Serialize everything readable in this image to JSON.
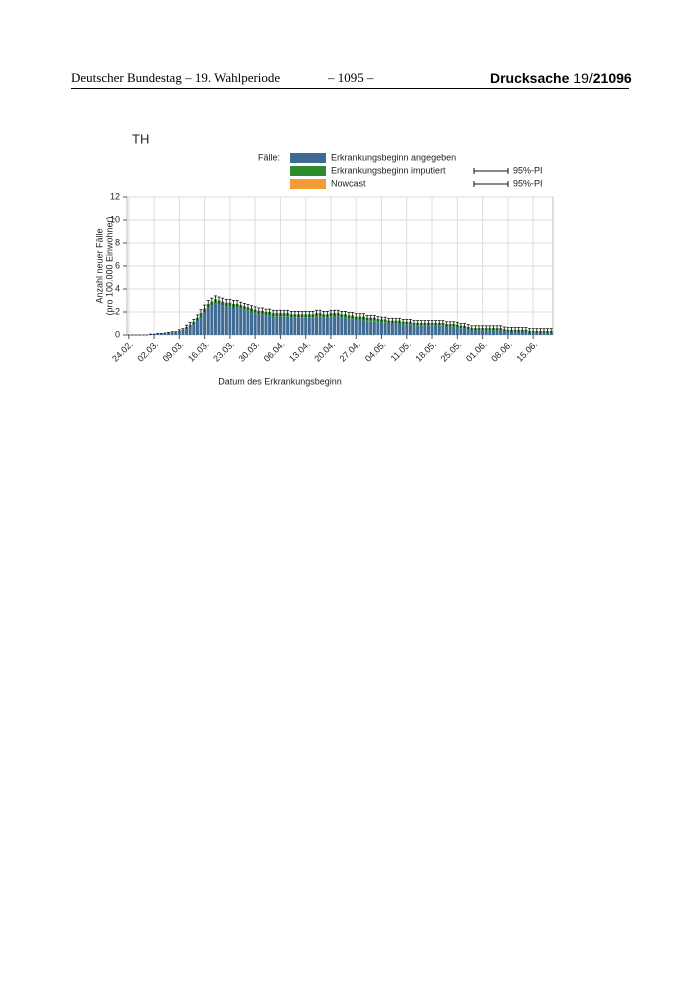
{
  "header": {
    "left": "Deutscher Bundestag – 19. Wahlperiode",
    "center": "– 1095 –",
    "right_bold": "Drucksache",
    "right_mid": "19/",
    "right_number": "21096"
  },
  "chart_data": {
    "type": "stacked-bar",
    "title": "TH",
    "legend_title": "Fälle:",
    "pi_label": "95%-PI",
    "xlabel": "Datum des Erkrankungsbeginn",
    "ylabel": [
      "Anzahl neuer Fälle",
      "(pro 100.000 Einwohner)"
    ],
    "ylim": [
      0,
      12
    ],
    "yticks": [
      0,
      2,
      4,
      6,
      8,
      10,
      12
    ],
    "grid": true,
    "categories": [
      "24.02.",
      null,
      null,
      null,
      null,
      null,
      null,
      "02.03.",
      null,
      null,
      null,
      null,
      null,
      null,
      "09.03.",
      null,
      null,
      null,
      null,
      null,
      null,
      "16.03.",
      null,
      null,
      null,
      null,
      null,
      null,
      "23.03.",
      null,
      null,
      null,
      null,
      null,
      null,
      "30.03.",
      null,
      null,
      null,
      null,
      null,
      null,
      "06.04.",
      null,
      null,
      null,
      null,
      null,
      null,
      "13.04.",
      null,
      null,
      null,
      null,
      null,
      null,
      "20.04.",
      null,
      null,
      null,
      null,
      null,
      null,
      "27.04.",
      null,
      null,
      null,
      null,
      null,
      null,
      "04.05.",
      null,
      null,
      null,
      null,
      null,
      null,
      "11.05.",
      null,
      null,
      null,
      null,
      null,
      null,
      "18.05.",
      null,
      null,
      null,
      null,
      null,
      null,
      "25.05.",
      null,
      null,
      null,
      null,
      null,
      null,
      "01.06.",
      null,
      null,
      null,
      null,
      null,
      null,
      "08.06.",
      null,
      null,
      null,
      null,
      null,
      null,
      "15.06.",
      null,
      null,
      null,
      null,
      null
    ],
    "series": [
      {
        "name": "Erkrankungsbeginn angegeben",
        "color": "#3e6a94",
        "values": [
          0,
          0,
          0,
          0,
          0,
          0,
          0.05,
          0.05,
          0.1,
          0.1,
          0.1,
          0.15,
          0.2,
          0.2,
          0.3,
          0.4,
          0.6,
          0.8,
          1.0,
          1.3,
          1.7,
          2.0,
          2.4,
          2.6,
          2.8,
          2.7,
          2.6,
          2.5,
          2.5,
          2.4,
          2.4,
          2.3,
          2.2,
          2.1,
          2.0,
          1.9,
          1.8,
          1.8,
          1.7,
          1.7,
          1.6,
          1.6,
          1.6,
          1.6,
          1.6,
          1.5,
          1.5,
          1.5,
          1.5,
          1.5,
          1.5,
          1.5,
          1.6,
          1.6,
          1.5,
          1.5,
          1.6,
          1.6,
          1.6,
          1.5,
          1.5,
          1.4,
          1.4,
          1.3,
          1.3,
          1.3,
          1.2,
          1.2,
          1.2,
          1.1,
          1.1,
          1.1,
          1.0,
          1.0,
          1.0,
          1.0,
          0.9,
          0.9,
          0.9,
          0.8,
          0.8,
          0.8,
          0.8,
          0.8,
          0.8,
          0.8,
          0.8,
          0.8,
          0.7,
          0.7,
          0.7,
          0.7,
          0.6,
          0.6,
          0.5,
          0.4,
          0.4,
          0.4,
          0.4,
          0.4,
          0.4,
          0.4,
          0.4,
          0.4,
          0.3,
          0.3,
          0.3,
          0.3,
          0.3,
          0.3,
          0.3,
          0.2,
          0.2,
          0.2,
          0.2,
          0.2,
          0.2,
          0.2
        ]
      },
      {
        "name": "Erkrankungsbeginn imputiert",
        "color": "#2e8b2e",
        "values": [
          0,
          0,
          0,
          0,
          0,
          0,
          0,
          0,
          0,
          0,
          0.02,
          0.02,
          0.03,
          0.03,
          0.05,
          0.05,
          0.1,
          0.1,
          0.15,
          0.2,
          0.2,
          0.3,
          0.3,
          0.3,
          0.3,
          0.3,
          0.3,
          0.3,
          0.3,
          0.3,
          0.3,
          0.3,
          0.3,
          0.3,
          0.3,
          0.3,
          0.3,
          0.3,
          0.3,
          0.3,
          0.3,
          0.3,
          0.3,
          0.3,
          0.3,
          0.3,
          0.3,
          0.3,
          0.3,
          0.3,
          0.3,
          0.3,
          0.3,
          0.3,
          0.3,
          0.3,
          0.3,
          0.3,
          0.3,
          0.3,
          0.3,
          0.3,
          0.3,
          0.3,
          0.3,
          0.3,
          0.3,
          0.3,
          0.3,
          0.3,
          0.25,
          0.25,
          0.25,
          0.25,
          0.25,
          0.25,
          0.25,
          0.25,
          0.25,
          0.25,
          0.25,
          0.25,
          0.25,
          0.25,
          0.25,
          0.25,
          0.25,
          0.25,
          0.25,
          0.25,
          0.25,
          0.2,
          0.2,
          0.2,
          0.2,
          0.2,
          0.2,
          0.2,
          0.2,
          0.2,
          0.2,
          0.2,
          0.2,
          0.2,
          0.2,
          0.15,
          0.15,
          0.15,
          0.15,
          0.15,
          0.15,
          0.15,
          0.15,
          0.15,
          0.15,
          0.15,
          0.15,
          0.15
        ]
      },
      {
        "name": "Nowcast",
        "color": "#f39c33"
      }
    ],
    "errors": [
      0,
      0,
      0,
      0,
      0,
      0,
      0.02,
      0.02,
      0.03,
      0.03,
      0.05,
      0.05,
      0.05,
      0.05,
      0.1,
      0.1,
      0.15,
      0.2,
      0.2,
      0.25,
      0.3,
      0.3,
      0.3,
      0.3,
      0.3,
      0.3,
      0.3,
      0.3,
      0.3,
      0.3,
      0.3,
      0.25,
      0.25,
      0.25,
      0.25,
      0.25,
      0.25,
      0.25,
      0.25,
      0.25,
      0.25,
      0.25,
      0.25,
      0.25,
      0.25,
      0.25,
      0.25,
      0.25,
      0.25,
      0.25,
      0.25,
      0.25,
      0.25,
      0.25,
      0.25,
      0.25,
      0.25,
      0.25,
      0.25,
      0.25,
      0.25,
      0.25,
      0.25,
      0.25,
      0.25,
      0.25,
      0.2,
      0.2,
      0.2,
      0.2,
      0.2,
      0.2,
      0.2,
      0.2,
      0.2,
      0.2,
      0.2,
      0.2,
      0.2,
      0.2,
      0.2,
      0.2,
      0.2,
      0.2,
      0.2,
      0.2,
      0.2,
      0.2,
      0.2,
      0.2,
      0.2,
      0.2,
      0.2,
      0.2,
      0.2,
      0.2,
      0.2,
      0.2,
      0.2,
      0.2,
      0.2,
      0.2,
      0.2,
      0.2,
      0.2,
      0.2,
      0.2,
      0.2,
      0.2,
      0.2,
      0.2,
      0.2,
      0.2,
      0.2,
      0.2,
      0.2,
      0.2,
      0.2
    ]
  }
}
